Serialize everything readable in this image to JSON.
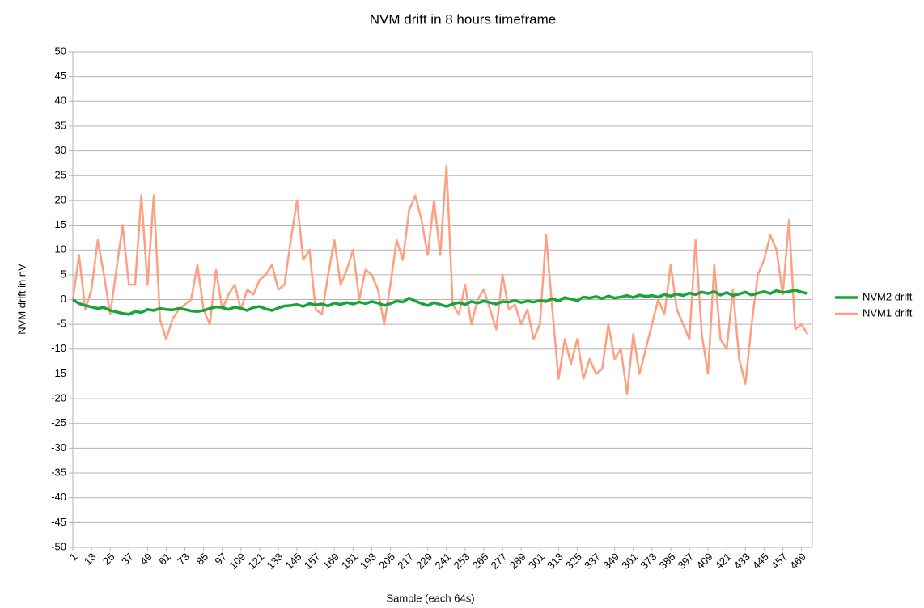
{
  "chart_data": {
    "type": "line",
    "title": "NVM drift in 8 hours timeframe",
    "x_label": "Sample (each 64s)",
    "y_label": "NVM drift in nV",
    "x": [
      1,
      5,
      9,
      13,
      17,
      21,
      25,
      29,
      33,
      37,
      41,
      45,
      49,
      53,
      57,
      61,
      65,
      69,
      73,
      77,
      81,
      85,
      89,
      93,
      97,
      101,
      105,
      109,
      113,
      117,
      121,
      125,
      129,
      133,
      137,
      141,
      145,
      149,
      153,
      157,
      161,
      165,
      169,
      173,
      177,
      181,
      185,
      189,
      193,
      197,
      201,
      205,
      209,
      213,
      217,
      221,
      225,
      229,
      233,
      237,
      241,
      245,
      249,
      253,
      257,
      261,
      265,
      269,
      273,
      277,
      281,
      285,
      289,
      293,
      297,
      301,
      305,
      309,
      313,
      317,
      321,
      325,
      329,
      333,
      337,
      341,
      345,
      349,
      353,
      357,
      361,
      365,
      369,
      373,
      377,
      381,
      385,
      389,
      393,
      397,
      401,
      405,
      409,
      413,
      417,
      421,
      425,
      429,
      433,
      437,
      441,
      445,
      449,
      453,
      457,
      461,
      465,
      469,
      473
    ],
    "series": [
      {
        "name": "NVM2 drift",
        "color": "#1aa33a",
        "width": 3.5,
        "values": [
          0,
          -0.8,
          -1.2,
          -1.5,
          -1.8,
          -1.6,
          -2.2,
          -2.5,
          -2.8,
          -3,
          -2.4,
          -2.6,
          -2,
          -2.2,
          -1.8,
          -2,
          -2.1,
          -1.8,
          -2,
          -2.3,
          -2.4,
          -2.2,
          -1.8,
          -1.5,
          -1.6,
          -2,
          -1.5,
          -1.8,
          -2.2,
          -1.6,
          -1.4,
          -1.9,
          -2.2,
          -1.7,
          -1.3,
          -1.2,
          -1,
          -1.4,
          -0.8,
          -1.1,
          -0.9,
          -1.3,
          -0.7,
          -1,
          -0.6,
          -0.9,
          -0.5,
          -0.8,
          -0.4,
          -0.7,
          -1.2,
          -0.8,
          -0.3,
          -0.5,
          0.3,
          -0.3,
          -0.8,
          -1.2,
          -0.6,
          -1,
          -1.4,
          -0.9,
          -0.6,
          -1,
          -0.4,
          -0.7,
          -0.3,
          -0.6,
          -0.9,
          -0.4,
          -0.5,
          -0.2,
          -0.6,
          -0.3,
          -0.5,
          -0.2,
          -0.4,
          0.2,
          -0.3,
          0.4,
          0.1,
          -0.2,
          0.5,
          0.3,
          0.6,
          0.2,
          0.7,
          0.3,
          0.5,
          0.8,
          0.4,
          0.9,
          0.6,
          0.8,
          0.5,
          1,
          0.7,
          1.1,
          0.8,
          1.3,
          1,
          1.5,
          1.2,
          1.6,
          0.9,
          1.4,
          0.8,
          1.1,
          1.5,
          0.9,
          1.3,
          1.6,
          1.2,
          1.8,
          1.4,
          1.6,
          1.9,
          1.5,
          1.2
        ]
      },
      {
        "name": "NVM1 drift",
        "color": "#ff9e80",
        "width": 2.5,
        "values": [
          0,
          9,
          -2,
          2,
          12,
          5,
          -3,
          6,
          15,
          3,
          3,
          21,
          3,
          21,
          -4,
          -8,
          -4,
          -2,
          -1,
          0,
          7,
          -2,
          -5,
          6,
          -2,
          1,
          3,
          -2,
          2,
          1,
          4,
          5,
          7,
          2,
          3,
          12,
          20,
          8,
          10,
          -2,
          -3,
          5,
          12,
          3,
          6,
          10,
          0,
          6,
          5,
          2,
          -5,
          3,
          12,
          8,
          18,
          21,
          16,
          9,
          20,
          9,
          27,
          -1,
          -3,
          3,
          -5,
          0,
          2,
          -2,
          -6,
          5,
          -2,
          -1,
          -5,
          -2,
          -8,
          -5,
          13,
          -2,
          -16,
          -8,
          -13,
          -8,
          -16,
          -12,
          -15,
          -14,
          -5,
          -12,
          -10,
          -19,
          -7,
          -15,
          -10,
          -5,
          0,
          -3,
          7,
          -2,
          -5,
          -8,
          12,
          -7,
          -15,
          7,
          -8,
          -10,
          2,
          -12,
          -17,
          -5,
          5,
          8,
          13,
          10,
          1,
          16,
          -6,
          -5,
          -7
        ]
      }
    ],
    "xlim": [
      1,
      476
    ],
    "xticks": [
      1,
      13,
      25,
      37,
      49,
      61,
      73,
      85,
      97,
      109,
      121,
      133,
      145,
      157,
      169,
      181,
      193,
      205,
      217,
      229,
      241,
      253,
      265,
      277,
      289,
      301,
      313,
      325,
      337,
      349,
      361,
      373,
      385,
      397,
      409,
      421,
      433,
      445,
      457,
      469
    ],
    "ylim": [
      -50,
      50
    ],
    "yticks": [
      -50,
      -45,
      -40,
      -35,
      -30,
      -25,
      -20,
      -15,
      -10,
      -5,
      0,
      5,
      10,
      15,
      20,
      25,
      30,
      35,
      40,
      45,
      50
    ],
    "grid": true,
    "legend": "right"
  }
}
